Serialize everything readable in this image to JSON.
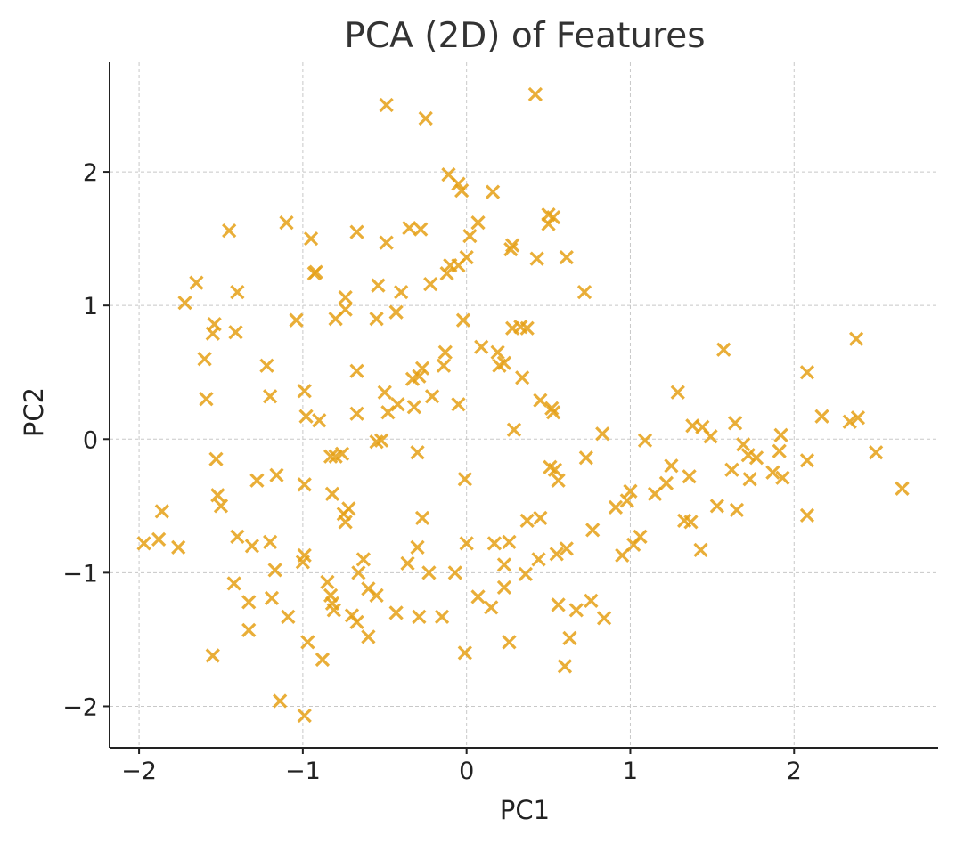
{
  "chart_data": {
    "type": "scatter",
    "title": "PCA (2D) of Features",
    "xlabel": "PC1",
    "ylabel": "PC2",
    "xlim": [
      -2.18,
      2.88
    ],
    "ylim": [
      -2.31,
      2.82
    ],
    "xticks": [
      -2,
      -1,
      0,
      1,
      2
    ],
    "yticks": [
      -2,
      -1,
      0,
      1,
      2
    ],
    "xtick_labels": [
      "−2",
      "−1",
      "0",
      "1",
      "2"
    ],
    "ytick_labels": [
      "−2",
      "−1",
      "0",
      "1",
      "2"
    ],
    "grid": true,
    "marker": "x",
    "color": "#E6A116",
    "series": [
      {
        "points": [
          [
            -0.49,
            2.5
          ],
          [
            -0.25,
            2.4
          ],
          [
            0.42,
            2.58
          ],
          [
            -0.11,
            1.98
          ],
          [
            -0.05,
            1.91
          ],
          [
            -0.03,
            1.86
          ],
          [
            0.16,
            1.85
          ],
          [
            0.5,
            1.68
          ],
          [
            0.53,
            1.66
          ],
          [
            0.5,
            1.61
          ],
          [
            0.07,
            1.62
          ],
          [
            -1.45,
            1.56
          ],
          [
            -1.1,
            1.62
          ],
          [
            -0.95,
            1.5
          ],
          [
            -0.67,
            1.55
          ],
          [
            -0.35,
            1.58
          ],
          [
            -0.28,
            1.57
          ],
          [
            -0.49,
            1.47
          ],
          [
            0.02,
            1.52
          ],
          [
            0.27,
            1.42
          ],
          [
            0.28,
            1.45
          ],
          [
            0.43,
            1.35
          ],
          [
            0.61,
            1.36
          ],
          [
            -0.93,
            1.24
          ],
          [
            -0.92,
            1.25
          ],
          [
            -0.22,
            1.16
          ],
          [
            -0.12,
            1.24
          ],
          [
            -0.1,
            1.3
          ],
          [
            -0.05,
            1.3
          ],
          [
            0.0,
            1.36
          ],
          [
            0.72,
            1.1
          ],
          [
            -1.65,
            1.17
          ],
          [
            -1.72,
            1.02
          ],
          [
            -1.4,
            1.1
          ],
          [
            -0.74,
            1.06
          ],
          [
            -0.74,
            0.97
          ],
          [
            -0.8,
            0.9
          ],
          [
            -0.54,
            1.15
          ],
          [
            -0.55,
            0.9
          ],
          [
            -0.4,
            1.1
          ],
          [
            -0.43,
            0.95
          ],
          [
            -1.54,
            0.86
          ],
          [
            -1.55,
            0.79
          ],
          [
            -1.41,
            0.8
          ],
          [
            -1.04,
            0.89
          ],
          [
            -0.02,
            0.89
          ],
          [
            0.28,
            0.83
          ],
          [
            0.33,
            0.84
          ],
          [
            0.37,
            0.83
          ],
          [
            -1.6,
            0.6
          ],
          [
            -1.22,
            0.55
          ],
          [
            -0.67,
            0.51
          ],
          [
            -0.13,
            0.65
          ],
          [
            -0.14,
            0.55
          ],
          [
            0.09,
            0.69
          ],
          [
            0.19,
            0.65
          ],
          [
            0.2,
            0.55
          ],
          [
            0.23,
            0.57
          ],
          [
            0.34,
            0.46
          ],
          [
            -0.33,
            0.45
          ],
          [
            -0.27,
            0.53
          ],
          [
            -0.29,
            0.47
          ],
          [
            -1.59,
            0.3
          ],
          [
            -1.2,
            0.32
          ],
          [
            -0.99,
            0.36
          ],
          [
            -0.98,
            0.17
          ],
          [
            -0.9,
            0.14
          ],
          [
            -0.67,
            0.19
          ],
          [
            -0.5,
            0.35
          ],
          [
            -0.48,
            0.2
          ],
          [
            -0.42,
            0.26
          ],
          [
            -0.32,
            0.24
          ],
          [
            -0.21,
            0.32
          ],
          [
            -0.05,
            0.26
          ],
          [
            0.45,
            0.29
          ],
          [
            0.52,
            0.23
          ],
          [
            0.53,
            0.2
          ],
          [
            1.57,
            0.67
          ],
          [
            2.38,
            0.75
          ],
          [
            2.08,
            0.5
          ],
          [
            1.29,
            0.35
          ],
          [
            1.38,
            0.1
          ],
          [
            1.44,
            0.09
          ],
          [
            1.49,
            0.02
          ],
          [
            1.64,
            0.12
          ],
          [
            1.69,
            -0.04
          ],
          [
            2.17,
            0.17
          ],
          [
            2.34,
            0.13
          ],
          [
            2.39,
            0.16
          ],
          [
            1.92,
            0.03
          ],
          [
            0.83,
            0.04
          ],
          [
            0.29,
            0.07
          ],
          [
            -0.55,
            -0.02
          ],
          [
            -0.52,
            -0.01
          ],
          [
            -1.53,
            -0.15
          ],
          [
            -0.3,
            -0.1
          ],
          [
            -0.83,
            -0.13
          ],
          [
            -0.8,
            -0.13
          ],
          [
            -0.76,
            -0.11
          ],
          [
            0.51,
            -0.21
          ],
          [
            0.54,
            -0.23
          ],
          [
            0.56,
            -0.31
          ],
          [
            0.73,
            -0.14
          ],
          [
            1.09,
            -0.01
          ],
          [
            1.25,
            -0.2
          ],
          [
            1.62,
            -0.23
          ],
          [
            1.72,
            -0.12
          ],
          [
            1.77,
            -0.14
          ],
          [
            1.87,
            -0.25
          ],
          [
            1.91,
            -0.09
          ],
          [
            1.93,
            -0.29
          ],
          [
            2.08,
            -0.16
          ],
          [
            2.5,
            -0.1
          ],
          [
            2.66,
            -0.37
          ],
          [
            1.73,
            -0.3
          ],
          [
            1.22,
            -0.33
          ],
          [
            1.15,
            -0.41
          ],
          [
            1.36,
            -0.28
          ],
          [
            1.0,
            -0.39
          ],
          [
            0.98,
            -0.46
          ],
          [
            0.91,
            -0.51
          ],
          [
            1.53,
            -0.5
          ],
          [
            1.65,
            -0.53
          ],
          [
            2.08,
            -0.57
          ],
          [
            1.33,
            -0.61
          ],
          [
            1.37,
            -0.62
          ],
          [
            1.02,
            -0.79
          ],
          [
            1.06,
            -0.73
          ],
          [
            0.77,
            -0.68
          ],
          [
            0.95,
            -0.87
          ],
          [
            1.43,
            -0.83
          ],
          [
            -0.01,
            -0.3
          ],
          [
            -1.28,
            -0.31
          ],
          [
            -1.16,
            -0.27
          ],
          [
            -0.99,
            -0.34
          ],
          [
            -1.52,
            -0.42
          ],
          [
            -1.5,
            -0.5
          ],
          [
            -0.82,
            -0.41
          ],
          [
            -0.72,
            -0.52
          ],
          [
            -0.75,
            -0.56
          ],
          [
            -0.74,
            -0.62
          ],
          [
            -0.27,
            -0.59
          ],
          [
            0.37,
            -0.61
          ],
          [
            0.45,
            -0.59
          ],
          [
            -1.86,
            -0.54
          ],
          [
            -1.97,
            -0.78
          ],
          [
            -1.88,
            -0.75
          ],
          [
            -1.76,
            -0.81
          ],
          [
            -1.4,
            -0.73
          ],
          [
            -1.31,
            -0.8
          ],
          [
            -1.2,
            -0.77
          ],
          [
            -0.99,
            -0.87
          ],
          [
            -1.0,
            -0.92
          ],
          [
            -0.63,
            -0.9
          ],
          [
            -0.66,
            -1.0
          ],
          [
            -0.85,
            -1.07
          ],
          [
            -0.3,
            -0.81
          ],
          [
            -0.36,
            -0.93
          ],
          [
            -0.23,
            -1.0
          ],
          [
            -0.07,
            -1.0
          ],
          [
            0.0,
            -0.78
          ],
          [
            0.17,
            -0.78
          ],
          [
            0.26,
            -0.77
          ],
          [
            0.23,
            -0.94
          ],
          [
            0.36,
            -1.01
          ],
          [
            0.44,
            -0.9
          ],
          [
            0.55,
            -0.86
          ],
          [
            0.61,
            -0.82
          ],
          [
            -1.42,
            -1.08
          ],
          [
            -1.33,
            -1.22
          ],
          [
            -1.19,
            -1.19
          ],
          [
            -1.17,
            -0.98
          ],
          [
            -1.09,
            -1.33
          ],
          [
            -1.33,
            -1.43
          ],
          [
            -0.83,
            -1.17
          ],
          [
            -0.82,
            -1.23
          ],
          [
            -0.81,
            -1.28
          ],
          [
            -0.7,
            -1.32
          ],
          [
            -0.67,
            -1.37
          ],
          [
            -0.6,
            -1.12
          ],
          [
            -0.55,
            -1.17
          ],
          [
            -0.43,
            -1.3
          ],
          [
            -0.6,
            -1.48
          ],
          [
            -0.29,
            -1.33
          ],
          [
            -0.15,
            -1.33
          ],
          [
            0.07,
            -1.18
          ],
          [
            0.15,
            -1.26
          ],
          [
            0.23,
            -1.11
          ],
          [
            0.56,
            -1.24
          ],
          [
            0.67,
            -1.28
          ],
          [
            0.76,
            -1.21
          ],
          [
            0.84,
            -1.34
          ],
          [
            0.63,
            -1.49
          ],
          [
            0.26,
            -1.52
          ],
          [
            -0.97,
            -1.52
          ],
          [
            -0.88,
            -1.65
          ],
          [
            -1.55,
            -1.62
          ],
          [
            -0.01,
            -1.6
          ],
          [
            0.6,
            -1.7
          ],
          [
            -1.14,
            -1.96
          ],
          [
            -0.99,
            -2.07
          ]
        ]
      }
    ]
  }
}
